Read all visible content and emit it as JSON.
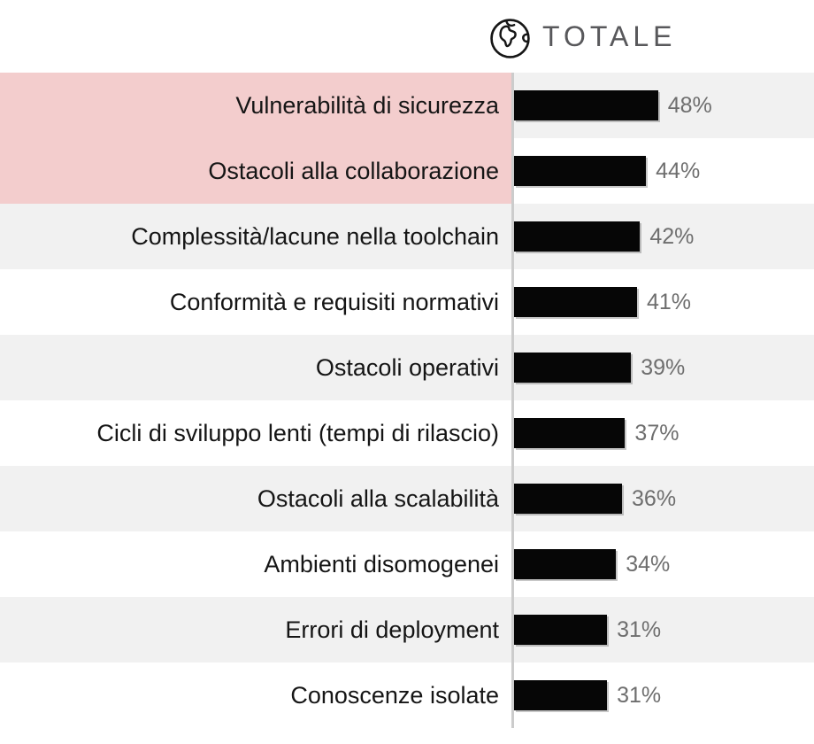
{
  "header": {
    "title": "TOTALE",
    "icon": "globe-icon"
  },
  "chart_data": {
    "type": "bar",
    "orientation": "horizontal",
    "title": "TOTALE",
    "categories": [
      "Vulnerabilità di sicurezza",
      "Ostacoli alla collaborazione",
      "Complessità/lacune nella toolchain",
      "Conformità e requisiti normativi",
      "Ostacoli operativi",
      "Cicli di sviluppo lenti (tempi di rilascio)",
      "Ostacoli alla scalabilità",
      "Ambienti disomogenei",
      "Errori di deployment",
      "Conoscenze isolate"
    ],
    "values": [
      48,
      44,
      42,
      41,
      39,
      37,
      36,
      34,
      31,
      31
    ],
    "value_labels": [
      "48%",
      "44%",
      "42%",
      "41%",
      "39%",
      "37%",
      "36%",
      "34%",
      "31%",
      "31%"
    ],
    "xlim": [
      0,
      100
    ],
    "grid": false,
    "legend": false,
    "highlighted_categories": [
      "Vulnerabilità di sicurezza",
      "Ostacoli alla collaborazione"
    ],
    "colors": {
      "bar": "#060606",
      "highlight_background": "#f3cdcd",
      "zebra_background": "#f1f1f1",
      "value_label": "#6e6e6e",
      "category_label": "#151515",
      "divider": "#cccccc",
      "title": "#58585b"
    }
  },
  "rows": [
    {
      "label": "Vulnerabilità di sicurezza",
      "value": 48,
      "display": "48%",
      "highlighted": true
    },
    {
      "label": "Ostacoli alla collaborazione",
      "value": 44,
      "display": "44%",
      "highlighted": true
    },
    {
      "label": "Complessità/lacune nella toolchain",
      "value": 42,
      "display": "42%",
      "highlighted": false
    },
    {
      "label": "Conformità e requisiti normativi",
      "value": 41,
      "display": "41%",
      "highlighted": false
    },
    {
      "label": "Ostacoli operativi",
      "value": 39,
      "display": "39%",
      "highlighted": false
    },
    {
      "label": "Cicli di sviluppo lenti (tempi di rilascio)",
      "value": 37,
      "display": "37%",
      "highlighted": false
    },
    {
      "label": "Ostacoli alla scalabilità",
      "value": 36,
      "display": "36%",
      "highlighted": false
    },
    {
      "label": "Ambienti disomogenei",
      "value": 34,
      "display": "34%",
      "highlighted": false
    },
    {
      "label": "Errori di deployment",
      "value": 31,
      "display": "31%",
      "highlighted": false
    },
    {
      "label": "Conoscenze isolate",
      "value": 31,
      "display": "31%",
      "highlighted": false
    }
  ]
}
